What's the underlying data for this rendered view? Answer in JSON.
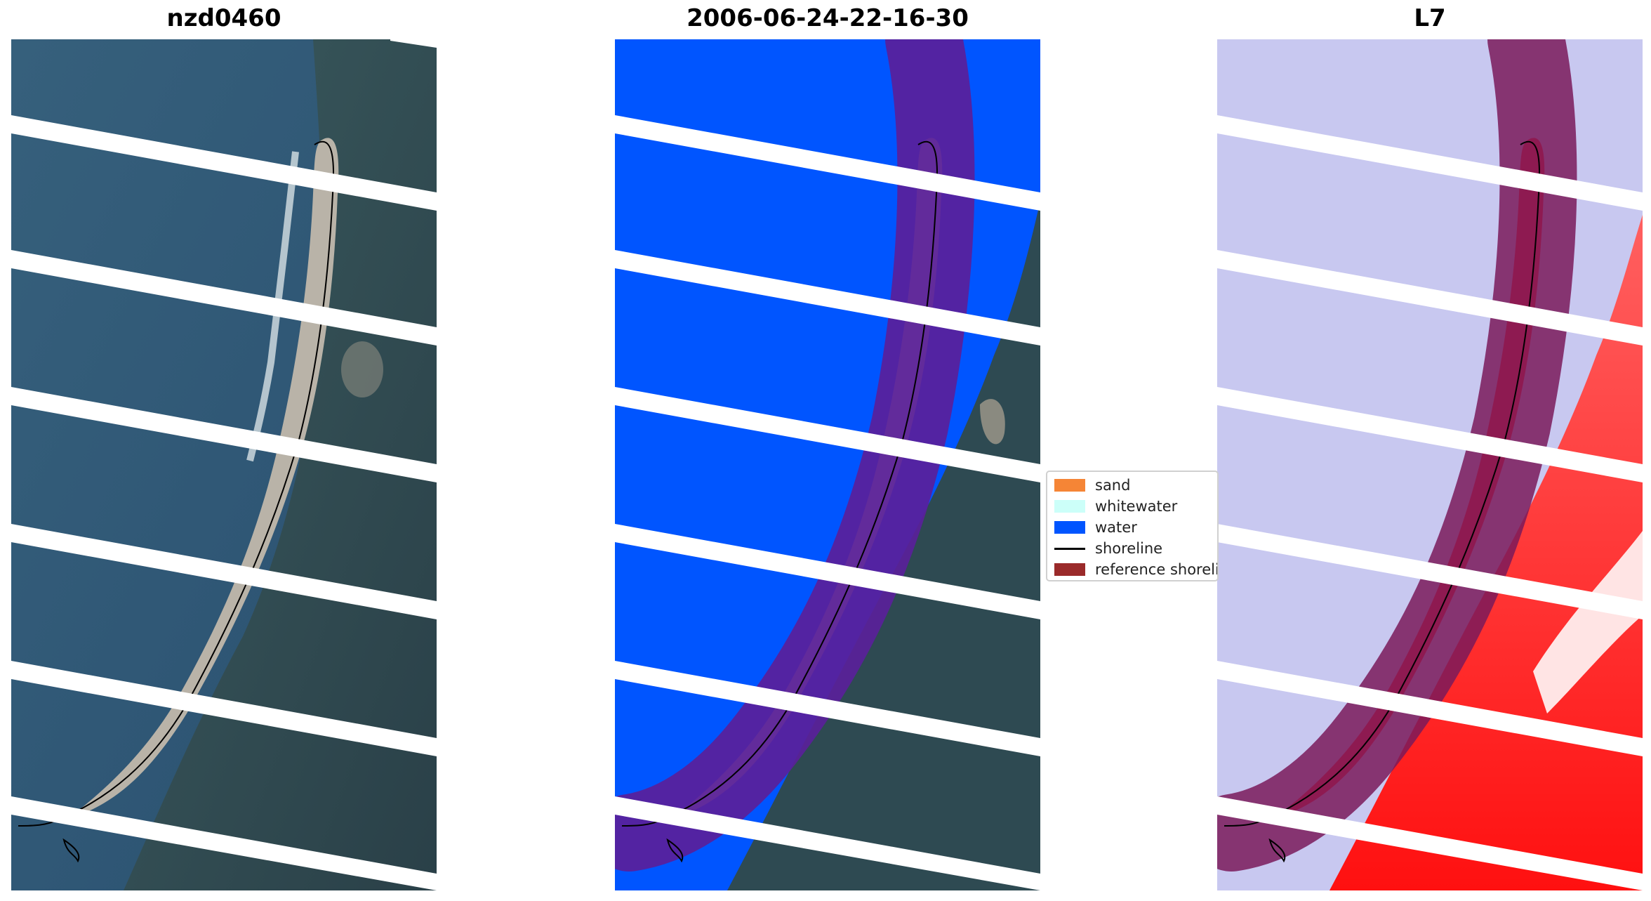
{
  "panels": [
    {
      "title": "nzd0460"
    },
    {
      "title": "2006-06-24-22-16-30"
    },
    {
      "title": "L7"
    }
  ],
  "legend": {
    "items": [
      {
        "label": "sand",
        "color": "#f58536",
        "kind": "patch"
      },
      {
        "label": "whitewater",
        "color": "#ccfff9",
        "kind": "patch"
      },
      {
        "label": "water",
        "color": "#0055ff",
        "kind": "patch"
      },
      {
        "label": "shoreline",
        "color": "#000000",
        "kind": "line"
      },
      {
        "label": "reference shoreli",
        "color": "#9a2a2a",
        "kind": "patch"
      }
    ]
  },
  "colors": {
    "ocean": "#2f5a7a",
    "land": "#2e4a52",
    "sand": "#b9b3a8",
    "water_class": "#0055ff",
    "buffer": "#5a1f9a",
    "buffer_on_land": "#7a2a5a",
    "index_low": "#c8c8f0",
    "index_high": "#ff2020",
    "gap": "#ffffff"
  }
}
